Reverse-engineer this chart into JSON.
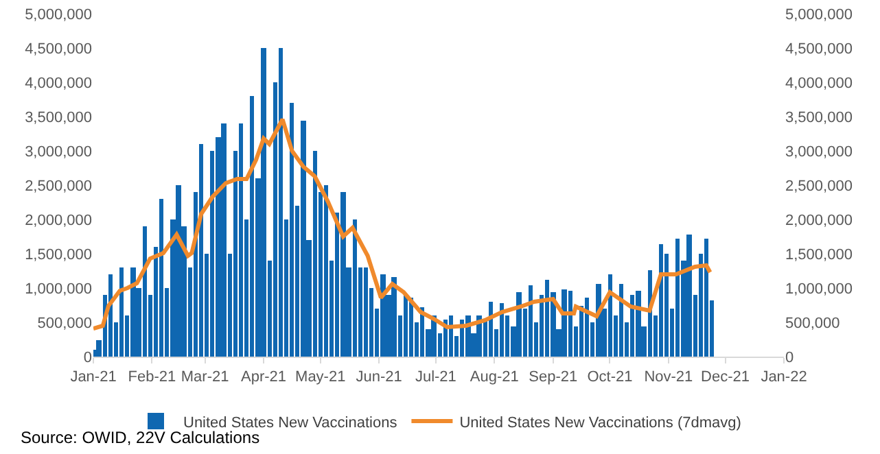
{
  "chart_data": {
    "type": "bar",
    "x": [
      "2021-01-01",
      "2021-01-04",
      "2021-01-07",
      "2021-01-10",
      "2021-01-13",
      "2021-01-16",
      "2021-01-19",
      "2021-01-22",
      "2021-01-25",
      "2021-01-28",
      "2021-01-31",
      "2021-02-03",
      "2021-02-06",
      "2021-02-09",
      "2021-02-12",
      "2021-02-15",
      "2021-02-18",
      "2021-02-21",
      "2021-02-24",
      "2021-02-27",
      "2021-03-02",
      "2021-03-05",
      "2021-03-08",
      "2021-03-11",
      "2021-03-14",
      "2021-03-17",
      "2021-03-20",
      "2021-03-23",
      "2021-03-26",
      "2021-03-29",
      "2021-04-01",
      "2021-04-04",
      "2021-04-07",
      "2021-04-10",
      "2021-04-13",
      "2021-04-16",
      "2021-04-19",
      "2021-04-22",
      "2021-04-25",
      "2021-04-28",
      "2021-05-01",
      "2021-05-04",
      "2021-05-07",
      "2021-05-10",
      "2021-05-13",
      "2021-05-16",
      "2021-05-19",
      "2021-05-22",
      "2021-05-25",
      "2021-05-28",
      "2021-05-31",
      "2021-06-03",
      "2021-06-06",
      "2021-06-09",
      "2021-06-12",
      "2021-06-15",
      "2021-06-18",
      "2021-06-21",
      "2021-06-24",
      "2021-06-27",
      "2021-06-30",
      "2021-07-03",
      "2021-07-06",
      "2021-07-09",
      "2021-07-12",
      "2021-07-15",
      "2021-07-18",
      "2021-07-21",
      "2021-07-24",
      "2021-07-27",
      "2021-07-30",
      "2021-08-02",
      "2021-08-05",
      "2021-08-08",
      "2021-08-11",
      "2021-08-14",
      "2021-08-17",
      "2021-08-20",
      "2021-08-23",
      "2021-08-26",
      "2021-08-29",
      "2021-09-01",
      "2021-09-04",
      "2021-09-07",
      "2021-09-10",
      "2021-09-13",
      "2021-09-16",
      "2021-09-19",
      "2021-09-22",
      "2021-09-25",
      "2021-09-28",
      "2021-10-01",
      "2021-10-04",
      "2021-10-07",
      "2021-10-10",
      "2021-10-13",
      "2021-10-16",
      "2021-10-19",
      "2021-10-22",
      "2021-10-25",
      "2021-10-28",
      "2021-10-31",
      "2021-11-03",
      "2021-11-06",
      "2021-11-09",
      "2021-11-12",
      "2021-11-15",
      "2021-11-18",
      "2021-11-21",
      "2021-11-24"
    ],
    "series": [
      {
        "name": "United States New Vaccinations",
        "color": "#0f67b1",
        "values": [
          100000,
          250000,
          900000,
          1200000,
          500000,
          1300000,
          600000,
          1300000,
          1000000,
          1900000,
          900000,
          1600000,
          2300000,
          1000000,
          2000000,
          2500000,
          1900000,
          1300000,
          2400000,
          3100000,
          1500000,
          3000000,
          3200000,
          3400000,
          1500000,
          3000000,
          3400000,
          2000000,
          3800000,
          2600000,
          4500000,
          1400000,
          4000000,
          4500000,
          2000000,
          3700000,
          2200000,
          3450000,
          1700000,
          3000000,
          2400000,
          2500000,
          1400000,
          2100000,
          2400000,
          1300000,
          2000000,
          1300000,
          1300000,
          1000000,
          700000,
          1200000,
          900000,
          1170000,
          600000,
          900000,
          860000,
          500000,
          730000,
          400000,
          600000,
          350000,
          550000,
          600000,
          300000,
          550000,
          600000,
          350000,
          600000,
          550000,
          800000,
          400000,
          780000,
          600000,
          450000,
          940000,
          700000,
          1040000,
          500000,
          900000,
          1130000,
          950000,
          400000,
          990000,
          970000,
          450000,
          750000,
          860000,
          500000,
          1060000,
          700000,
          1210000,
          600000,
          1060000,
          500000,
          900000,
          970000,
          450000,
          1270000,
          600000,
          1650000,
          1500000,
          700000,
          1730000,
          1400000,
          1780000,
          900000,
          1500000,
          1730000,
          820000
        ]
      },
      {
        "name": "United States New Vaccinations (7dmavg)",
        "type": "line",
        "axis": "y2",
        "color": "#f08a2c",
        "x": [
          "2021-01-01",
          "2021-01-06",
          "2021-01-09",
          "2021-01-15",
          "2021-01-19",
          "2021-01-24",
          "2021-01-31",
          "2021-02-07",
          "2021-02-14",
          "2021-02-20",
          "2021-02-22",
          "2021-02-27",
          "2021-03-05",
          "2021-03-12",
          "2021-03-18",
          "2021-03-23",
          "2021-03-28",
          "2021-04-01",
          "2021-04-04",
          "2021-04-11",
          "2021-04-16",
          "2021-04-22",
          "2021-04-28",
          "2021-05-05",
          "2021-05-13",
          "2021-05-18",
          "2021-05-26",
          "2021-06-02",
          "2021-06-08",
          "2021-06-14",
          "2021-06-23",
          "2021-06-30",
          "2021-07-07",
          "2021-07-17",
          "2021-07-27",
          "2021-08-05",
          "2021-08-15",
          "2021-08-22",
          "2021-09-01",
          "2021-09-06",
          "2021-09-12",
          "2021-09-13",
          "2021-09-24",
          "2021-10-01",
          "2021-10-12",
          "2021-10-22",
          "2021-10-28",
          "2021-11-05",
          "2021-11-15",
          "2021-11-21",
          "2021-11-23"
        ],
        "values": [
          410000,
          450000,
          740000,
          960000,
          1000000,
          1070000,
          1430000,
          1510000,
          1780000,
          1470000,
          1510000,
          2080000,
          2330000,
          2530000,
          2590000,
          2590000,
          2870000,
          3180000,
          3100000,
          3460000,
          3000000,
          2770000,
          2630000,
          2260000,
          1750000,
          1880000,
          1470000,
          860000,
          1060000,
          940000,
          650000,
          550000,
          430000,
          450000,
          530000,
          650000,
          730000,
          800000,
          840000,
          630000,
          630000,
          730000,
          590000,
          940000,
          730000,
          670000,
          1200000,
          1200000,
          1310000,
          1330000,
          1230000
        ]
      }
    ],
    "xlim": [
      "2021-01-01",
      "2022-01-01"
    ],
    "xticks": [
      {
        "value": "2021-01-01",
        "label": "Jan-21"
      },
      {
        "value": "2021-02-01",
        "label": "Feb-21"
      },
      {
        "value": "2021-03-01",
        "label": "Mar-21"
      },
      {
        "value": "2021-04-01",
        "label": "Apr-21"
      },
      {
        "value": "2021-05-01",
        "label": "May-21"
      },
      {
        "value": "2021-06-01",
        "label": "Jun-21"
      },
      {
        "value": "2021-07-01",
        "label": "Jul-21"
      },
      {
        "value": "2021-08-01",
        "label": "Aug-21"
      },
      {
        "value": "2021-09-01",
        "label": "Sep-21"
      },
      {
        "value": "2021-10-01",
        "label": "Oct-21"
      },
      {
        "value": "2021-11-01",
        "label": "Nov-21"
      },
      {
        "value": "2021-12-01",
        "label": "Dec-21"
      },
      {
        "value": "2022-01-01",
        "label": "Jan-22"
      }
    ],
    "ylim": [
      0,
      5000000
    ],
    "yticks": [
      {
        "value": 0,
        "label": "0"
      },
      {
        "value": 500000,
        "label": "500,000"
      },
      {
        "value": 1000000,
        "label": "1,000,000"
      },
      {
        "value": 1500000,
        "label": "1,500,000"
      },
      {
        "value": 2000000,
        "label": "2,000,000"
      },
      {
        "value": 2500000,
        "label": "2,500,000"
      },
      {
        "value": 3000000,
        "label": "3,000,000"
      },
      {
        "value": 3500000,
        "label": "3,500,000"
      },
      {
        "value": 4000000,
        "label": "4,000,000"
      },
      {
        "value": 4500000,
        "label": "4,500,000"
      },
      {
        "value": 5000000,
        "label": "5,000,000"
      }
    ],
    "y2lim": [
      0,
      5000000
    ],
    "y2ticks": [
      {
        "value": 0,
        "label": "0"
      },
      {
        "value": 500000,
        "label": "500,000"
      },
      {
        "value": 1000000,
        "label": "1,000,000"
      },
      {
        "value": 1500000,
        "label": "1,500,000"
      },
      {
        "value": 2000000,
        "label": "2,000,000"
      },
      {
        "value": 2500000,
        "label": "2,500,000"
      },
      {
        "value": 3000000,
        "label": "3,000,000"
      },
      {
        "value": 3500000,
        "label": "3,500,000"
      },
      {
        "value": 4000000,
        "label": "4,000,000"
      },
      {
        "value": 4500000,
        "label": "4,500,000"
      },
      {
        "value": 5000000,
        "label": "5,000,000"
      }
    ],
    "legend": "bottom",
    "annotations": [
      "Source: OWID, 22V Calculations"
    ]
  }
}
